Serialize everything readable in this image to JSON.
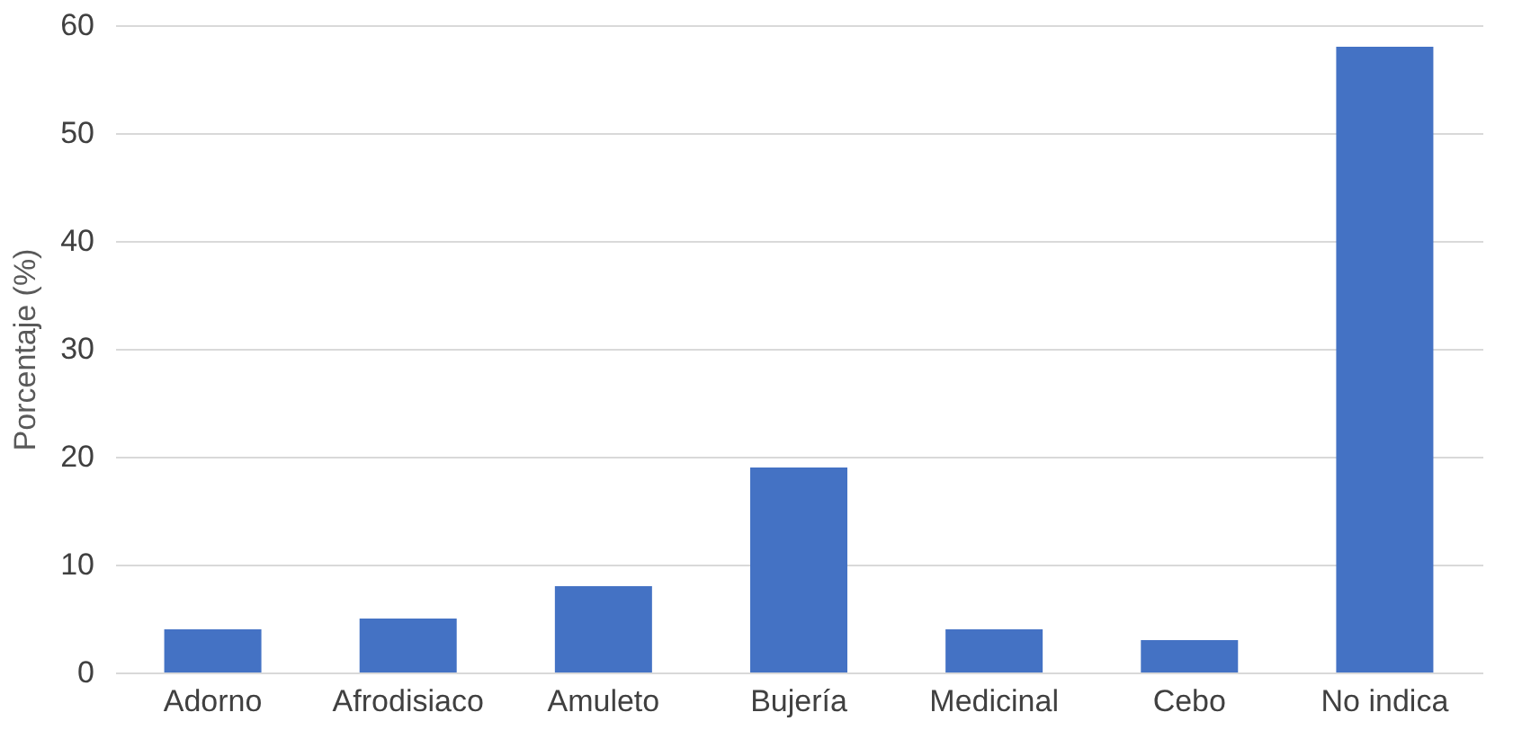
{
  "chart_data": {
    "type": "bar",
    "ylabel": "Porcentaje (%)",
    "categories": [
      "Adorno",
      "Afrodisiaco",
      "Amuleto",
      "Bujería",
      "Medicinal",
      "Cebo",
      "No indica"
    ],
    "values": [
      4,
      5,
      8,
      19,
      4,
      3,
      58
    ],
    "color": "#4472c4",
    "ylim": [
      0,
      60
    ],
    "yticks": [
      0,
      10,
      20,
      30,
      40,
      50,
      60
    ],
    "grid": "y"
  }
}
